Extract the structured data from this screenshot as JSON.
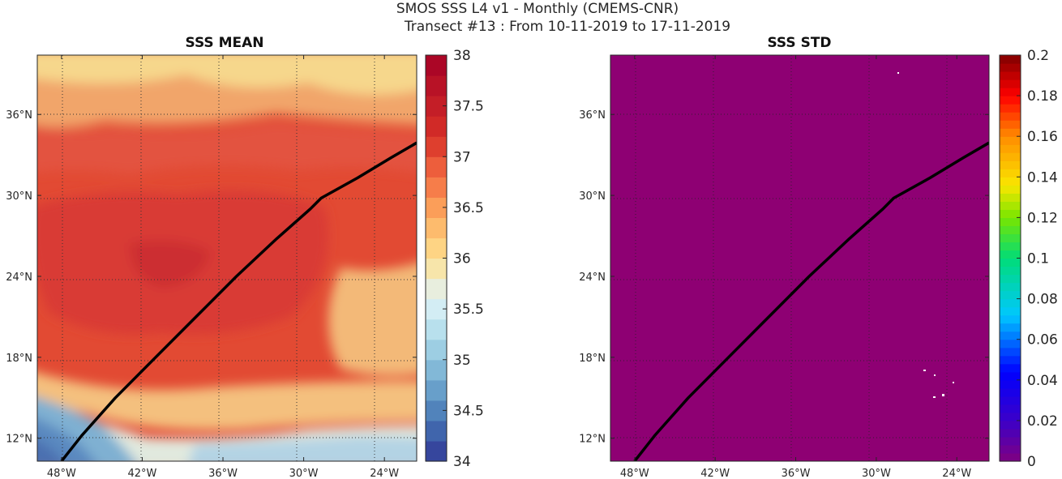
{
  "figure": {
    "title_line1": "SMOS SSS L4 v1 - Monthly (CMEMS-CNR)",
    "title_line2": "Transect #13 : From 10-11-2019 to 17-11-2019"
  },
  "colors": {
    "std_fill": "#8e0073",
    "transect": "#000000"
  },
  "chart_data": [
    {
      "type": "heatmap",
      "title": "SSS MEAN",
      "x_ticks": [
        "48°W",
        "42°W",
        "36°W",
        "30°W",
        "24°W"
      ],
      "x_tick_values": [
        -48,
        -42,
        -36,
        -30,
        -24
      ],
      "y_ticks": [
        "12°N",
        "18°N",
        "24°N",
        "30°N",
        "36°N"
      ],
      "y_tick_values": [
        12,
        18,
        24,
        30,
        36
      ],
      "xlim": [
        -49.8,
        -21.6
      ],
      "ylim": [
        10.3,
        40.4
      ],
      "grid": true,
      "colorbar": {
        "range": [
          34,
          38
        ],
        "tick_values": [
          34,
          34.5,
          35,
          35.5,
          36,
          36.5,
          37,
          37.5,
          38
        ],
        "tick_labels": [
          "34",
          "34.5",
          "35",
          "35.5",
          "36",
          "36.5",
          "37",
          "37.5",
          "38"
        ],
        "colormap": "RdYlBu_r",
        "levels": 20
      },
      "regions": {
        "north_band_sss": 36.4,
        "mid_north_sss": 37.1,
        "central_core_sss": 37.4,
        "south_band_sss": 36.8,
        "far_south_sss": 36.1,
        "southwest_corner_sss": 34.8
      },
      "transect": {
        "lon": [
          -48.0,
          -46.5,
          -44.0,
          -41.0,
          -38.0,
          -35.0,
          -32.0,
          -29.5,
          -28.7,
          -26.0,
          -23.5,
          -21.6
        ],
        "lat": [
          10.3,
          12.2,
          15.0,
          18.0,
          21.0,
          24.0,
          26.8,
          29.0,
          29.8,
          31.3,
          32.8,
          33.9
        ]
      }
    },
    {
      "type": "heatmap",
      "title": "SSS STD",
      "x_ticks": [
        "48°W",
        "42°W",
        "36°W",
        "30°W",
        "24°W"
      ],
      "x_tick_values": [
        -48,
        -42,
        -36,
        -30,
        -24
      ],
      "y_ticks": [
        "12°N",
        "18°N",
        "24°N",
        "30°N",
        "36°N"
      ],
      "y_tick_values": [
        12,
        18,
        24,
        30,
        36
      ],
      "xlim": [
        -49.8,
        -21.6
      ],
      "ylim": [
        10.3,
        40.4
      ],
      "grid": true,
      "uniform_value": 0,
      "colorbar": {
        "range": [
          0,
          0.2
        ],
        "tick_values": [
          0,
          0.02,
          0.04,
          0.06,
          0.08,
          0.1,
          0.12,
          0.14,
          0.16,
          0.18,
          0.2
        ],
        "tick_labels": [
          "0",
          "0.02",
          "0.04",
          "0.06",
          "0.08",
          "0.1",
          "0.12",
          "0.14",
          "0.16",
          "0.18",
          "0.2"
        ],
        "colormap": "jet"
      },
      "transect": {
        "lon": [
          -48.0,
          -46.5,
          -44.0,
          -41.0,
          -38.0,
          -35.0,
          -32.0,
          -29.5,
          -28.7,
          -26.0,
          -23.5,
          -21.6
        ],
        "lat": [
          10.3,
          12.2,
          15.0,
          18.0,
          21.0,
          24.0,
          26.8,
          29.0,
          29.8,
          31.3,
          32.8,
          33.9
        ]
      }
    }
  ]
}
